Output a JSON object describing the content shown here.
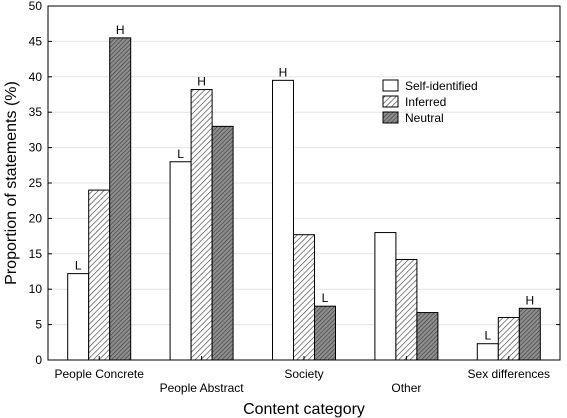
{
  "chart_data": {
    "type": "bar",
    "categories": [
      "People Concrete",
      "People Abstract",
      "Society",
      "Other",
      "Sex differences"
    ],
    "series": [
      {
        "name": "Self-identified",
        "values": [
          12.2,
          28.0,
          39.5,
          18.0,
          2.3
        ],
        "fill": "#ffffff",
        "pattern": "none"
      },
      {
        "name": "Inferred",
        "values": [
          24.0,
          38.2,
          17.7,
          14.2,
          6.0
        ],
        "fill": "#ffffff",
        "pattern": "diagonal-hatch"
      },
      {
        "name": "Neutral",
        "values": [
          45.5,
          33.0,
          7.6,
          6.7,
          7.3
        ],
        "fill": "#7a7a7a",
        "pattern": "dense-hatch"
      }
    ],
    "bar_labels": [
      {
        "series": 0,
        "category": 0,
        "text": "L"
      },
      {
        "series": 2,
        "category": 0,
        "text": "H"
      },
      {
        "series": 0,
        "category": 1,
        "text": "L"
      },
      {
        "series": 1,
        "category": 1,
        "text": "H"
      },
      {
        "series": 0,
        "category": 2,
        "text": "H"
      },
      {
        "series": 2,
        "category": 2,
        "text": "L"
      },
      {
        "series": 0,
        "category": 4,
        "text": "L"
      },
      {
        "series": 2,
        "category": 4,
        "text": "H"
      }
    ],
    "xlabel": "Content category",
    "ylabel": "Proportion of statements (%)",
    "ylim": [
      0,
      50
    ],
    "yticks": [
      0,
      5,
      10,
      15,
      20,
      25,
      30,
      35,
      40,
      45,
      50
    ],
    "grid": true,
    "legend_position": "top-right"
  }
}
